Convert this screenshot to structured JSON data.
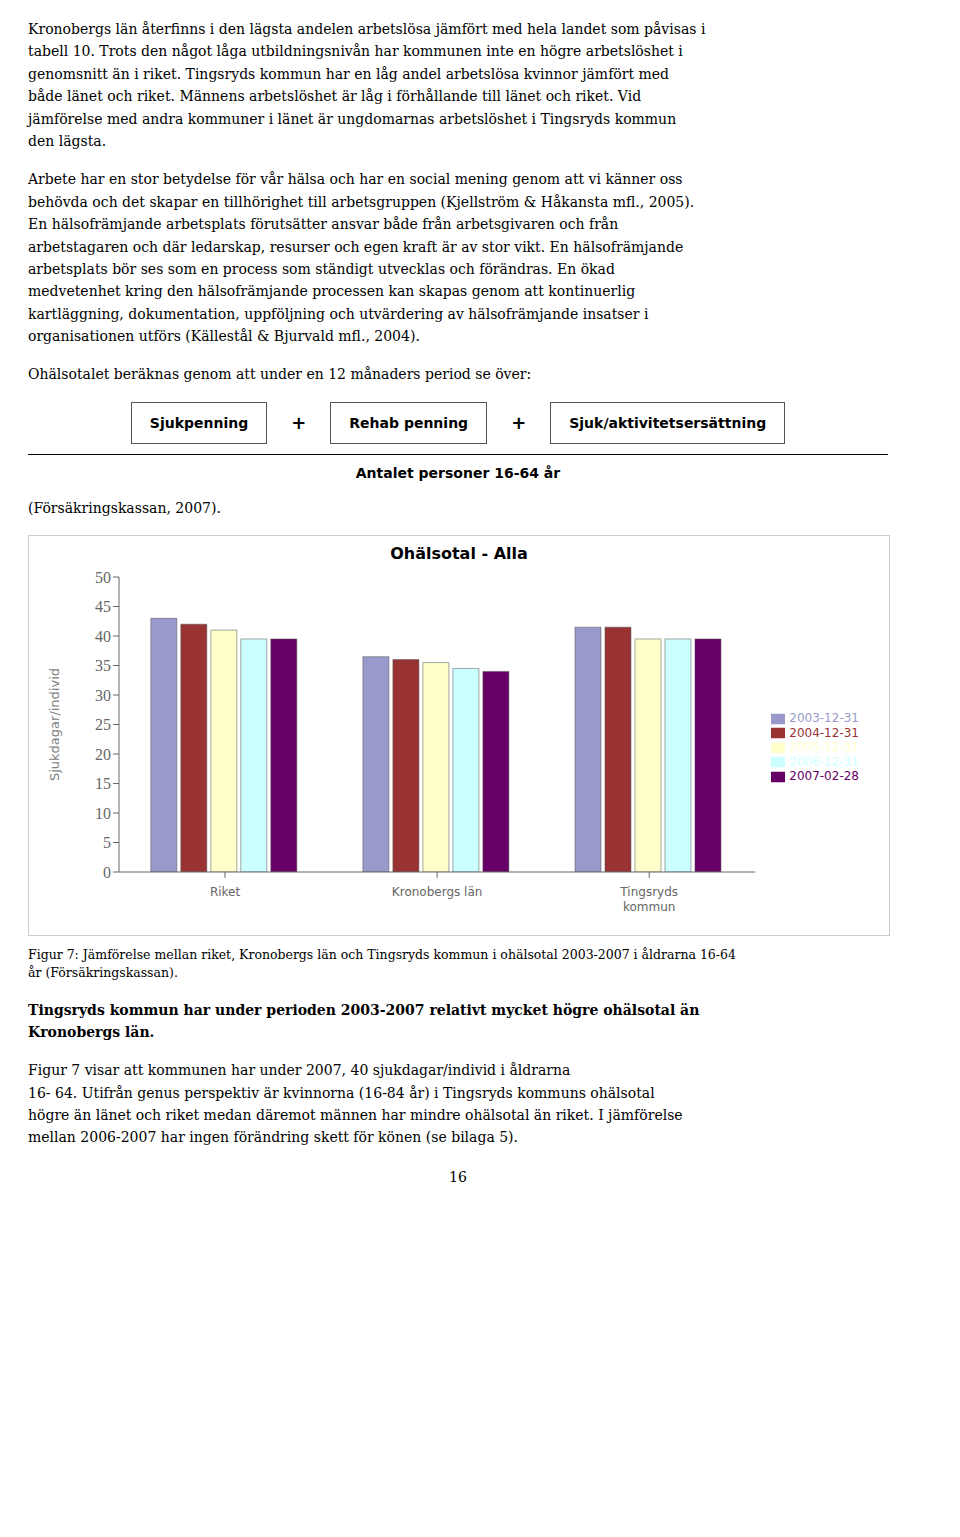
{
  "chart_data": {
    "type": "bar",
    "title": "Ohälsotal - Alla",
    "y_label": "Sjukdagar/individ",
    "categories": [
      "Riket",
      "Kronobergs län",
      "Tingsryds\nkommun"
    ],
    "series": [
      {
        "name": "2003-12-31",
        "color": "#9999CC",
        "values": [
          43.0,
          36.5,
          41.5
        ]
      },
      {
        "name": "2004-12-31",
        "color": "#993333",
        "values": [
          42.0,
          36.0,
          41.5
        ]
      },
      {
        "name": "2005-12-31",
        "color": "#FFFFCC",
        "values": [
          41.0,
          35.5,
          39.5
        ]
      },
      {
        "name": "2006-12-31",
        "color": "#CCFFFF",
        "values": [
          39.5,
          34.5,
          39.5
        ]
      },
      {
        "name": "2007-02-28",
        "color": "#660066",
        "values": [
          39.5,
          34.0,
          39.5
        ]
      }
    ],
    "ylim": [
      0,
      50
    ],
    "yticks": [
      0,
      5,
      10,
      15,
      20,
      25,
      30,
      35,
      40,
      45,
      50
    ],
    "grid": false,
    "legend": "right",
    "annotations": [
      "Kronobergs län återfinns i den lägsta andelen arbetslösa jämfört med hela landet som påvisas i\ntabell 10. Trots den något låga utbildningsnivån har kommunen inte en högre arbetslöshet i\ngenomsnitt än i riket. Tingsryds kommun har en låg andel arbetslösa kvinnor jämfört med\nbåde länet och riket. Männens arbetslöshet är låg i förhållande till länet och riket. Vid\njämförelse med andra kommuner i länet är ungdomarnas arbetslöshet i Tingsryds kommun\nden lägsta.",
      "Arbete har en stor betydelse för vår hälsa och har en social mening genom att vi känner oss\nbehövda och det skapar en tillhörighet till arbetsgruppen (Kjellström & Håkansta mfl., 2005).\nEn hälsofrämjande arbetsplats förutsätter ansvar både från arbetsgivaren och från\narbetstagaren och där ledarskap, resurser och egen kraft är av stor vikt. En hälsofrämjande\narbetsplats bör ses som en process som ständigt utvecklas och förändras. En ökad\nmedvetenhet kring den hälsofrämjande processen kan skapas genom att kontinuerlig\nkartläggning, dokumentation, uppföljning och utvärdering av hälsofrämjande insatser i\norganisationen utförs (Källestål & Bjurvald mfl., 2004).",
      "Ohälsotalet beräknas genom att under en 12 månaders period se över:",
      "Sjukpenning",
      "+",
      "Rehab penning",
      "+",
      "Sjuk/aktivitetsersättning",
      "Antalet personer 16-64 år",
      "(Försäkringskassan, 2007).",
      "Figur 7: Jämförelse mellan riket, Kronobergs län och Tingsryds kommun i ohälsotal 2003-2007 i åldrarna 16-64\når (Försäkringskassan).",
      "Tingsryds kommun har under perioden 2003-2007 relativt mycket högre ohälsotal än\nKronobergs län.",
      "Figur 7 visar att kommunen har under 2007, 40 sjukdagar/individ i åldrarna\n16- 64. Utifrån genus perspektiv är kvinnorna (16-84 år) i Tingsryds kommuns ohälsotal\nhögre än länet och riket medan däremot männen har mindre ohälsotal än riket. I jämförelse\nmellan 2006-2007 har ingen förändring skett för könen (se bilaga 5).",
      "16"
    ]
  }
}
